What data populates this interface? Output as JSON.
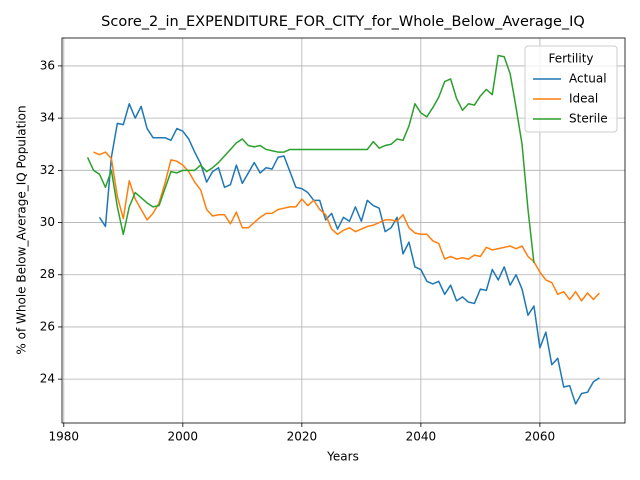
{
  "chart_data": {
    "type": "line",
    "title": "Score_2_in_EXPENDITURE_FOR_CITY_for_Whole_Below_Average_IQ",
    "x_label": "Years",
    "y_label": "% of Whole Below_Average_IQ Population",
    "legend_title": "Fertility",
    "legend_loc": "upper right",
    "grid": true,
    "xlim": [
      1979.7,
      2074.3
    ],
    "xticks": [
      1980,
      2000,
      2020,
      2040,
      2060
    ],
    "ylim": [
      22.32,
      37.07
    ],
    "yticks": [
      24,
      26,
      28,
      30,
      32,
      34,
      36
    ],
    "x": [
      1984,
      1985,
      1986,
      1987,
      1988,
      1989,
      1990,
      1991,
      1992,
      1993,
      1994,
      1995,
      1996,
      1997,
      1998,
      1999,
      2000,
      2001,
      2002,
      2003,
      2004,
      2005,
      2006,
      2007,
      2008,
      2009,
      2010,
      2011,
      2012,
      2013,
      2014,
      2015,
      2016,
      2017,
      2018,
      2019,
      2020,
      2021,
      2022,
      2023,
      2024,
      2025,
      2026,
      2027,
      2028,
      2029,
      2030,
      2031,
      2032,
      2033,
      2034,
      2035,
      2036,
      2037,
      2038,
      2039,
      2040,
      2041,
      2042,
      2043,
      2044,
      2045,
      2046,
      2047,
      2048,
      2049,
      2050,
      2051,
      2052,
      2053,
      2054,
      2055,
      2056,
      2057,
      2058,
      2059,
      2060,
      2061,
      2062,
      2063,
      2064,
      2065,
      2066,
      2067,
      2068,
      2069,
      2070
    ],
    "series": [
      {
        "name": "Actual",
        "color": "#1f77b4",
        "values": [
          null,
          null,
          30.2,
          29.85,
          32.5,
          33.8,
          33.75,
          34.55,
          34.0,
          34.45,
          33.6,
          33.25,
          33.25,
          33.25,
          33.15,
          33.6,
          33.5,
          33.2,
          32.7,
          32.25,
          31.55,
          31.95,
          32.1,
          31.35,
          31.45,
          32.2,
          31.5,
          31.9,
          32.3,
          31.9,
          32.1,
          32.05,
          32.5,
          32.55,
          31.95,
          31.35,
          31.3,
          31.15,
          30.85,
          30.85,
          30.1,
          30.35,
          29.75,
          30.2,
          30.05,
          30.6,
          30.05,
          30.85,
          30.65,
          30.55,
          29.65,
          29.8,
          30.2,
          28.8,
          29.25,
          28.3,
          28.2,
          27.75,
          27.65,
          27.75,
          27.25,
          27.6,
          27.0,
          27.15,
          26.95,
          26.9,
          27.45,
          27.4,
          28.2,
          27.8,
          28.3,
          27.6,
          28.0,
          27.45,
          26.45,
          26.8,
          25.2,
          25.8,
          24.55,
          24.8,
          23.7,
          23.75,
          23.05,
          23.45,
          23.5,
          23.9,
          24.05
        ]
      },
      {
        "name": "Ideal",
        "color": "#ff7f0e",
        "values": [
          null,
          32.7,
          32.6,
          32.7,
          32.45,
          31.0,
          30.15,
          31.6,
          30.9,
          30.5,
          30.1,
          30.35,
          30.75,
          31.5,
          32.4,
          32.35,
          32.2,
          31.95,
          31.55,
          31.25,
          30.5,
          30.25,
          30.3,
          30.3,
          29.95,
          30.4,
          29.8,
          29.8,
          30.0,
          30.2,
          30.35,
          30.35,
          30.5,
          30.55,
          30.6,
          30.6,
          30.9,
          30.65,
          30.85,
          30.5,
          30.3,
          29.75,
          29.55,
          29.7,
          29.8,
          29.65,
          29.75,
          29.85,
          29.9,
          30.0,
          30.1,
          30.1,
          30.05,
          30.3,
          29.8,
          29.6,
          29.55,
          29.55,
          29.3,
          29.2,
          28.6,
          28.7,
          28.6,
          28.65,
          28.6,
          28.75,
          28.7,
          29.05,
          28.95,
          29.0,
          29.05,
          29.1,
          29.0,
          29.1,
          28.7,
          28.5,
          28.1,
          27.8,
          27.7,
          27.25,
          27.35,
          27.05,
          27.35,
          27.0,
          27.3,
          27.05,
          27.3
        ]
      },
      {
        "name": "Sterile",
        "color": "#2ca02c",
        "values": [
          32.5,
          32.0,
          31.85,
          31.35,
          32.0,
          30.6,
          29.55,
          30.6,
          31.15,
          30.95,
          30.75,
          30.6,
          30.65,
          31.3,
          31.95,
          31.9,
          32.0,
          32.0,
          32.0,
          32.2,
          31.95,
          32.1,
          32.3,
          32.55,
          32.8,
          33.05,
          33.2,
          32.95,
          32.9,
          32.95,
          32.8,
          32.75,
          32.7,
          32.7,
          32.8,
          32.8,
          32.8,
          32.8,
          32.8,
          32.8,
          32.8,
          32.8,
          32.8,
          32.8,
          32.8,
          32.8,
          32.8,
          32.8,
          33.1,
          32.85,
          32.95,
          33.0,
          33.2,
          33.15,
          33.7,
          34.55,
          34.2,
          34.05,
          34.4,
          34.8,
          35.4,
          35.5,
          34.75,
          34.3,
          34.55,
          34.5,
          34.85,
          35.1,
          34.9,
          36.4,
          36.35,
          35.7,
          34.4,
          33.0,
          30.5,
          28.45,
          null,
          null,
          null,
          null,
          null,
          null,
          null,
          null,
          null,
          null,
          null
        ]
      }
    ]
  }
}
